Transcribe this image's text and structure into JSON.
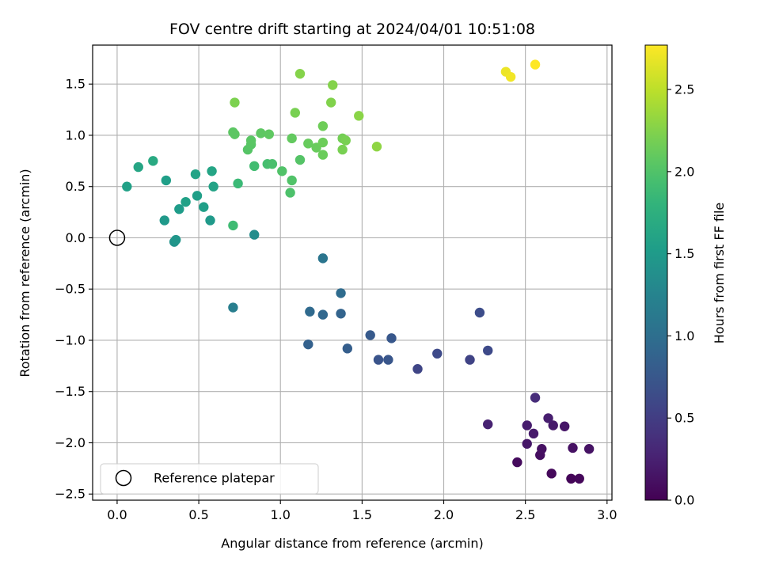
{
  "chart_data": {
    "type": "scatter",
    "title": "FOV centre drift starting at 2024/04/01 10:51:08",
    "xlabel": "Angular distance from reference (arcmin)",
    "ylabel": "Rotation from reference (arcmin)",
    "xlim": [
      -0.15,
      3.03
    ],
    "ylim": [
      -2.56,
      1.88
    ],
    "xticks": [
      0.0,
      0.5,
      1.0,
      1.5,
      2.0,
      2.5,
      3.0
    ],
    "xtick_labels": [
      "0.0",
      "0.5",
      "1.0",
      "1.5",
      "2.0",
      "2.5",
      "3.0"
    ],
    "yticks": [
      -2.5,
      -2.0,
      -1.5,
      -1.0,
      -0.5,
      0.0,
      0.5,
      1.0,
      1.5
    ],
    "ytick_labels": [
      "−2.5",
      "−2.0",
      "−1.5",
      "−1.0",
      "−0.5",
      "0.0",
      "0.5",
      "1.0",
      "1.5"
    ],
    "grid": true,
    "legend": {
      "placement": "lower-left",
      "entries": [
        {
          "label": "Reference platepar",
          "marker": "open-circle"
        }
      ]
    },
    "reference_point": {
      "x": 0.0,
      "y": 0.0
    },
    "colorbar": {
      "label": "Hours from first FF file",
      "colormap": "viridis",
      "range": [
        0.0,
        2.77
      ],
      "ticks": [
        0.0,
        0.5,
        1.0,
        1.5,
        2.0,
        2.5
      ],
      "tick_labels": [
        "0.0",
        "0.5",
        "1.0",
        "1.5",
        "2.0",
        "2.5"
      ]
    },
    "series": [
      {
        "columns": [
          "x",
          "y",
          "hours"
        ],
        "points": [
          [
            2.78,
            -2.35,
            0.03
          ],
          [
            2.83,
            -2.35,
            0.05
          ],
          [
            2.66,
            -2.3,
            0.06
          ],
          [
            2.45,
            -2.19,
            0.08
          ],
          [
            2.59,
            -2.12,
            0.1
          ],
          [
            2.6,
            -2.06,
            0.12
          ],
          [
            2.79,
            -2.05,
            0.13
          ],
          [
            2.89,
            -2.06,
            0.14
          ],
          [
            2.51,
            -2.01,
            0.17
          ],
          [
            2.55,
            -1.91,
            0.2
          ],
          [
            2.51,
            -1.83,
            0.22
          ],
          [
            2.67,
            -1.83,
            0.2
          ],
          [
            2.74,
            -1.84,
            0.16
          ],
          [
            2.64,
            -1.76,
            0.23
          ],
          [
            2.27,
            -1.82,
            0.26
          ],
          [
            2.56,
            -1.56,
            0.35
          ],
          [
            2.16,
            -1.19,
            0.55
          ],
          [
            1.84,
            -1.28,
            0.57
          ],
          [
            1.96,
            -1.13,
            0.62
          ],
          [
            2.27,
            -1.1,
            0.62
          ],
          [
            2.22,
            -0.73,
            0.65
          ],
          [
            1.6,
            -1.19,
            0.72
          ],
          [
            1.66,
            -1.19,
            0.74
          ],
          [
            1.68,
            -0.98,
            0.75
          ],
          [
            1.55,
            -0.95,
            0.78
          ],
          [
            1.41,
            -1.08,
            0.82
          ],
          [
            1.17,
            -1.04,
            0.85
          ],
          [
            1.37,
            -0.74,
            0.88
          ],
          [
            1.26,
            -0.75,
            0.92
          ],
          [
            1.18,
            -0.72,
            0.95
          ],
          [
            1.37,
            -0.54,
            0.97
          ],
          [
            1.26,
            -0.2,
            1.08
          ],
          [
            0.71,
            -0.68,
            1.18
          ],
          [
            0.84,
            0.03,
            1.35
          ],
          [
            0.35,
            -0.04,
            1.42
          ],
          [
            0.36,
            -0.02,
            1.45
          ],
          [
            0.29,
            0.17,
            1.48
          ],
          [
            0.57,
            0.17,
            1.5
          ],
          [
            0.38,
            0.28,
            1.52
          ],
          [
            0.53,
            0.3,
            1.55
          ],
          [
            0.42,
            0.35,
            1.57
          ],
          [
            0.49,
            0.41,
            1.55
          ],
          [
            0.3,
            0.56,
            1.55
          ],
          [
            0.06,
            0.5,
            1.58
          ],
          [
            0.59,
            0.5,
            1.6
          ],
          [
            0.48,
            0.62,
            1.6
          ],
          [
            0.58,
            0.65,
            1.62
          ],
          [
            0.13,
            0.69,
            1.63
          ],
          [
            0.22,
            0.75,
            1.68
          ],
          [
            0.71,
            0.12,
            1.9
          ],
          [
            0.74,
            0.53,
            1.88
          ],
          [
            0.84,
            0.7,
            1.92
          ],
          [
            0.92,
            0.72,
            1.94
          ],
          [
            0.95,
            0.72,
            1.96
          ],
          [
            1.01,
            0.65,
            2.0
          ],
          [
            1.06,
            0.44,
            1.98
          ],
          [
            1.07,
            0.56,
            2.0
          ],
          [
            1.12,
            0.76,
            2.02
          ],
          [
            0.8,
            0.86,
            2.03
          ],
          [
            0.82,
            0.91,
            2.04
          ],
          [
            0.82,
            0.95,
            2.05
          ],
          [
            0.72,
            1.01,
            2.06
          ],
          [
            0.71,
            1.03,
            2.06
          ],
          [
            0.88,
            1.02,
            2.07
          ],
          [
            0.93,
            1.01,
            2.08
          ],
          [
            1.07,
            0.97,
            2.1
          ],
          [
            1.17,
            0.92,
            2.12
          ],
          [
            1.22,
            0.88,
            2.13
          ],
          [
            1.26,
            0.81,
            2.14
          ],
          [
            1.26,
            0.93,
            2.15
          ],
          [
            1.26,
            1.09,
            2.16
          ],
          [
            1.38,
            0.97,
            2.18
          ],
          [
            1.4,
            0.95,
            2.2
          ],
          [
            1.38,
            0.86,
            2.2
          ],
          [
            1.09,
            1.22,
            2.2
          ],
          [
            0.72,
            1.32,
            2.22
          ],
          [
            1.31,
            1.32,
            2.24
          ],
          [
            1.32,
            1.49,
            2.25
          ],
          [
            1.12,
            1.6,
            2.26
          ],
          [
            1.48,
            1.19,
            2.28
          ],
          [
            1.59,
            0.89,
            2.3
          ],
          [
            2.38,
            1.62,
            2.7
          ],
          [
            2.41,
            1.57,
            2.72
          ],
          [
            2.56,
            1.69,
            2.77
          ]
        ]
      }
    ]
  }
}
